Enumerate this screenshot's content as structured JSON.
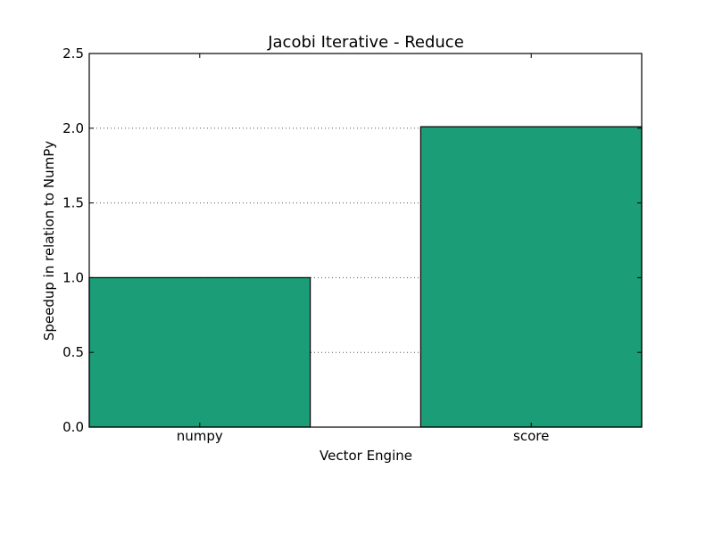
{
  "chart_data": {
    "type": "bar",
    "title": "Jacobi Iterative - Reduce",
    "xlabel": "Vector Engine",
    "ylabel": "Speedup in relation to NumPy",
    "categories": [
      "numpy",
      "score"
    ],
    "values": [
      1.0,
      2.01
    ],
    "ylim": [
      0,
      2.5
    ],
    "yticks": [
      0.0,
      0.5,
      1.0,
      1.5,
      2.0,
      2.5
    ],
    "ytick_labels": [
      "0.0",
      "0.5",
      "1.0",
      "1.5",
      "2.0",
      "2.5"
    ],
    "grid": "horizontal dotted",
    "legend": "none",
    "bar_color": "#1b9e77",
    "edge_color": "#000000"
  }
}
